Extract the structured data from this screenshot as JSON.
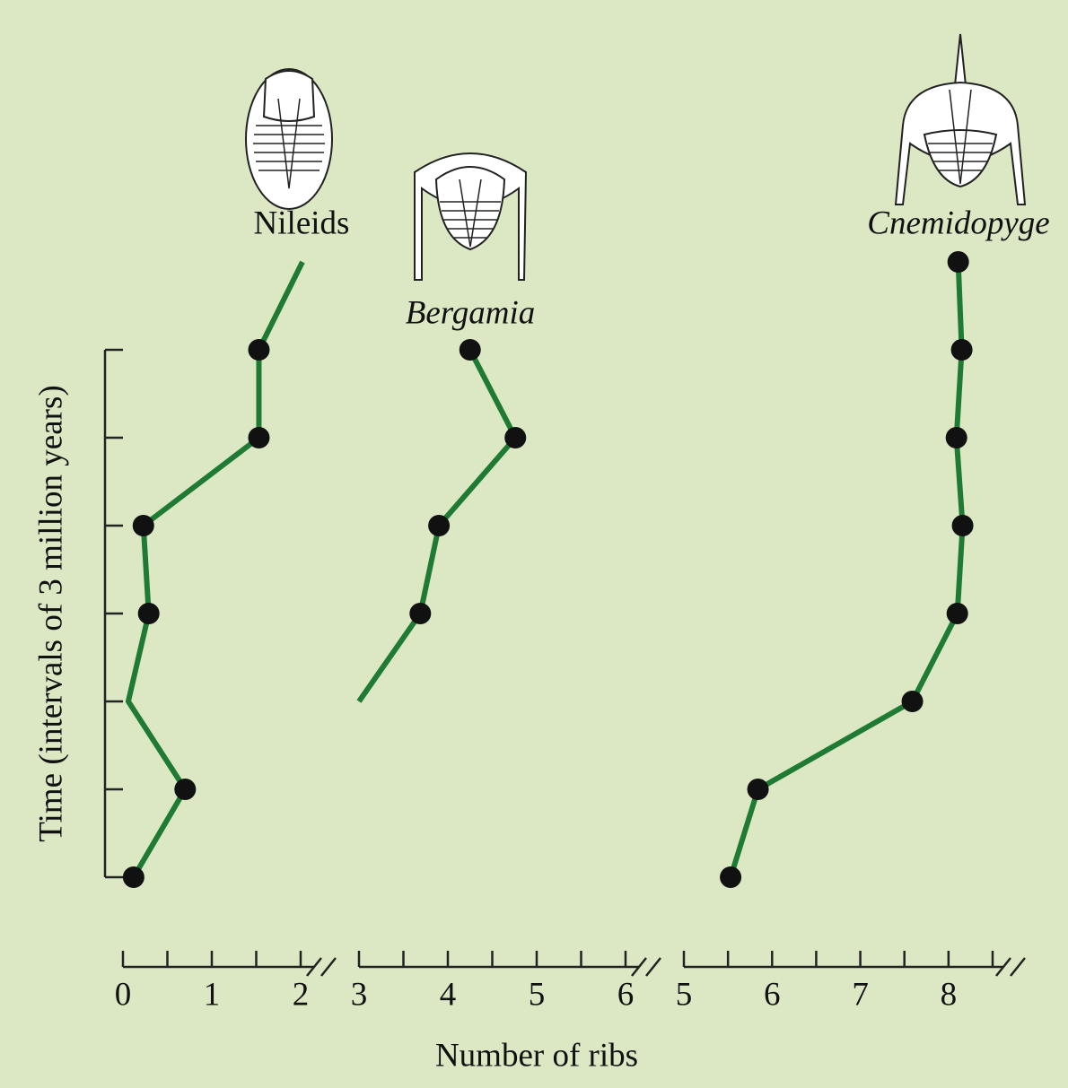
{
  "xlabel": "Number of ribs",
  "chart_data": [
    {
      "type": "line",
      "title": "Nileids",
      "title_italic": false,
      "ylabel": "Time (intervals of 3 million years)",
      "x": [
        2.02,
        1.53,
        1.53,
        0.23,
        0.29,
        0.06,
        0.7,
        0.12
      ],
      "values": [
        7,
        6,
        5,
        4,
        3,
        2,
        1,
        0
      ],
      "markers": [
        false,
        true,
        true,
        true,
        true,
        false,
        true,
        true
      ],
      "xlim": [
        0,
        2
      ],
      "xticks": [
        0,
        1,
        2
      ],
      "xminor_ticks": [
        0.5,
        1.5
      ],
      "ylim": [
        0,
        7
      ],
      "yticks": [
        0,
        1,
        2,
        3,
        4,
        5,
        6
      ],
      "color": "#1f7a34"
    },
    {
      "type": "line",
      "title": "Bergamia",
      "title_italic": true,
      "x": [
        4.25,
        4.76,
        3.9,
        3.69,
        3.0
      ],
      "values": [
        6,
        5,
        4,
        3,
        2
      ],
      "markers": [
        true,
        true,
        true,
        true,
        false
      ],
      "xlim": [
        3,
        6
      ],
      "xticks": [
        3,
        4,
        5,
        6
      ],
      "xminor_ticks": [
        3.5,
        4.5,
        5.5
      ],
      "ylim": [
        0,
        7
      ],
      "color": "#1f7a34"
    },
    {
      "type": "line",
      "title": "Cnemidopyge",
      "title_italic": true,
      "x": [
        8.11,
        8.15,
        8.09,
        8.16,
        8.1,
        7.59,
        5.84,
        5.53
      ],
      "values": [
        7,
        6,
        5,
        4,
        3,
        2,
        1,
        0
      ],
      "markers": [
        true,
        true,
        true,
        true,
        true,
        true,
        true,
        true
      ],
      "xlim": [
        5,
        8.5
      ],
      "xticks": [
        5,
        6,
        7,
        8
      ],
      "xminor_ticks": [
        5.5,
        6.5,
        7.5,
        8.5
      ],
      "ylim": [
        0,
        7
      ],
      "color": "#1f7a34"
    }
  ]
}
